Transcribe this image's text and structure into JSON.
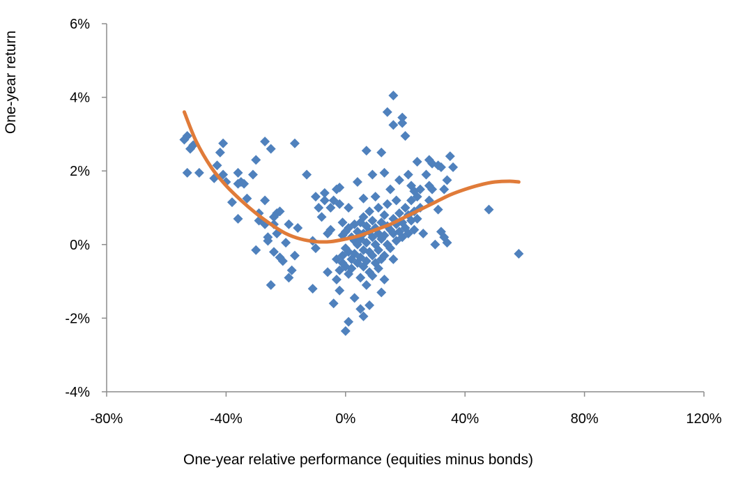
{
  "chart_data": {
    "type": "scatter",
    "title": "",
    "xlabel": "One-year relative performance (equities minus bonds)",
    "ylabel": "One-year return",
    "xlim": [
      -80,
      120
    ],
    "ylim": [
      -4,
      6
    ],
    "x_ticks": [
      -80,
      -40,
      0,
      40,
      80,
      120
    ],
    "x_tick_labels": [
      "-80%",
      "-40%",
      "0%",
      "40%",
      "80%",
      "120%"
    ],
    "y_ticks": [
      -4,
      -2,
      0,
      2,
      4,
      6
    ],
    "y_tick_labels": [
      "-4%",
      "-2%",
      "0%",
      "2%",
      "4%",
      "6%"
    ],
    "grid": false,
    "legend": "none",
    "series": [
      {
        "kind": "scatter",
        "marker": "diamond",
        "color": "#4F81BD",
        "points": [
          [
            -54,
            2.85
          ],
          [
            -53,
            2.95
          ],
          [
            -52,
            2.6
          ],
          [
            -51,
            2.7
          ],
          [
            -53,
            1.95
          ],
          [
            -49,
            1.95
          ],
          [
            -44,
            1.8
          ],
          [
            -43,
            2.15
          ],
          [
            -42,
            2.5
          ],
          [
            -41,
            2.75
          ],
          [
            -41,
            1.9
          ],
          [
            -40,
            1.7
          ],
          [
            -38,
            1.15
          ],
          [
            -36,
            1.95
          ],
          [
            -36,
            1.65
          ],
          [
            -35,
            1.7
          ],
          [
            -34,
            1.65
          ],
          [
            -36,
            0.7
          ],
          [
            -33,
            1.25
          ],
          [
            -31,
            1.9
          ],
          [
            -30,
            2.3
          ],
          [
            -29,
            0.85
          ],
          [
            -29,
            0.65
          ],
          [
            -27,
            2.8
          ],
          [
            -27,
            1.2
          ],
          [
            -27,
            0.55
          ],
          [
            -26,
            0.2
          ],
          [
            -26,
            0.1
          ],
          [
            -25,
            2.6
          ],
          [
            -25,
            -1.1
          ],
          [
            -24,
            0.75
          ],
          [
            -24,
            0.55
          ],
          [
            -23,
            0.85
          ],
          [
            -22,
            0.9
          ],
          [
            -23,
            0.3
          ],
          [
            -24,
            -0.2
          ],
          [
            -22,
            -0.35
          ],
          [
            -21,
            -0.45
          ],
          [
            -19,
            -0.9
          ],
          [
            -19,
            0.55
          ],
          [
            -18,
            -0.7
          ],
          [
            -17,
            -0.3
          ],
          [
            -17,
            2.75
          ],
          [
            -16,
            0.45
          ],
          [
            -20,
            0.05
          ],
          [
            -30,
            -0.15
          ],
          [
            -13,
            1.9
          ],
          [
            -11,
            0.1
          ],
          [
            -11,
            -1.2
          ],
          [
            -10,
            -0.1
          ],
          [
            -10,
            1.3
          ],
          [
            -9,
            1.0
          ],
          [
            -8,
            0.75
          ],
          [
            -7,
            1.4
          ],
          [
            -7,
            1.2
          ],
          [
            -6,
            -0.75
          ],
          [
            -6,
            0.3
          ],
          [
            -5,
            1.0
          ],
          [
            -5,
            0.4
          ],
          [
            -4,
            1.2
          ],
          [
            -4,
            -1.6
          ],
          [
            -3,
            1.5
          ],
          [
            -3,
            -0.4
          ],
          [
            -3,
            -0.95
          ],
          [
            -2,
            1.55
          ],
          [
            -2,
            1.1
          ],
          [
            -2,
            -0.7
          ],
          [
            -2,
            -1.25
          ],
          [
            -1,
            0.6
          ],
          [
            -1,
            0.25
          ],
          [
            -1,
            -0.3
          ],
          [
            -1,
            -0.5
          ],
          [
            0,
            -2.35
          ],
          [
            0,
            0.35
          ],
          [
            0,
            -0.1
          ],
          [
            0,
            -0.6
          ],
          [
            1,
            1.0
          ],
          [
            1,
            -2.1
          ],
          [
            1,
            0.45
          ],
          [
            1,
            -0.2
          ],
          [
            1,
            -0.8
          ],
          [
            2,
            0.2
          ],
          [
            2,
            -0.4
          ],
          [
            2,
            -0.65
          ],
          [
            3,
            0.55
          ],
          [
            3,
            0.1
          ],
          [
            3,
            -0.25
          ],
          [
            3,
            -1.45
          ],
          [
            4,
            0.35
          ],
          [
            4,
            0.0
          ],
          [
            4,
            -0.5
          ],
          [
            4,
            1.7
          ],
          [
            5,
            0.6
          ],
          [
            5,
            0.15
          ],
          [
            5,
            -0.35
          ],
          [
            5,
            -0.9
          ],
          [
            5,
            -1.75
          ],
          [
            6,
            0.75
          ],
          [
            6,
            0.3
          ],
          [
            6,
            -0.15
          ],
          [
            6,
            -0.6
          ],
          [
            6,
            -1.95
          ],
          [
            6,
            1.25
          ],
          [
            7,
            2.55
          ],
          [
            7,
            0.5
          ],
          [
            7,
            0.05
          ],
          [
            7,
            -0.45
          ],
          [
            7,
            -1.1
          ],
          [
            8,
            0.9
          ],
          [
            8,
            0.35
          ],
          [
            8,
            -0.2
          ],
          [
            8,
            -0.75
          ],
          [
            8,
            -1.65
          ],
          [
            9,
            1.9
          ],
          [
            9,
            0.65
          ],
          [
            9,
            0.2
          ],
          [
            9,
            -0.3
          ],
          [
            9,
            -0.85
          ],
          [
            10,
            1.3
          ],
          [
            10,
            0.45
          ],
          [
            10,
            0.0
          ],
          [
            10,
            -0.5
          ],
          [
            11,
            1.0
          ],
          [
            11,
            0.3
          ],
          [
            11,
            -0.15
          ],
          [
            11,
            -0.65
          ],
          [
            12,
            2.5
          ],
          [
            12,
            0.6
          ],
          [
            12,
            0.15
          ],
          [
            12,
            -0.4
          ],
          [
            12,
            -1.3
          ],
          [
            13,
            1.95
          ],
          [
            13,
            0.8
          ],
          [
            13,
            0.25
          ],
          [
            13,
            -0.3
          ],
          [
            13,
            -0.95
          ],
          [
            14,
            3.6
          ],
          [
            14,
            1.1
          ],
          [
            14,
            0.5
          ],
          [
            14,
            0.0
          ],
          [
            15,
            1.5
          ],
          [
            15,
            0.4
          ],
          [
            15,
            -0.1
          ],
          [
            16,
            4.05
          ],
          [
            16,
            3.25
          ],
          [
            16,
            0.7
          ],
          [
            16,
            0.3
          ],
          [
            16,
            -0.4
          ],
          [
            17,
            1.2
          ],
          [
            17,
            0.55
          ],
          [
            17,
            0.1
          ],
          [
            18,
            1.75
          ],
          [
            18,
            0.85
          ],
          [
            18,
            0.35
          ],
          [
            19,
            3.45
          ],
          [
            19,
            3.3
          ],
          [
            19,
            0.6
          ],
          [
            19,
            0.2
          ],
          [
            20,
            2.95
          ],
          [
            20,
            1.0
          ],
          [
            20,
            0.45
          ],
          [
            21,
            1.9
          ],
          [
            21,
            0.8
          ],
          [
            21,
            0.3
          ],
          [
            22,
            1.6
          ],
          [
            22,
            1.2
          ],
          [
            22,
            0.65
          ],
          [
            23,
            1.45
          ],
          [
            23,
            0.9
          ],
          [
            23,
            0.4
          ],
          [
            24,
            2.25
          ],
          [
            24,
            1.3
          ],
          [
            24,
            0.7
          ],
          [
            25,
            1.5
          ],
          [
            25,
            1.0
          ],
          [
            26,
            0.3
          ],
          [
            27,
            1.9
          ],
          [
            28,
            2.3
          ],
          [
            28,
            1.6
          ],
          [
            28,
            1.2
          ],
          [
            29,
            2.2
          ],
          [
            29,
            1.5
          ],
          [
            30,
            0.0
          ],
          [
            31,
            2.15
          ],
          [
            31,
            0.95
          ],
          [
            32,
            2.1
          ],
          [
            32,
            0.35
          ],
          [
            33,
            1.5
          ],
          [
            33,
            0.2
          ],
          [
            34,
            1.75
          ],
          [
            34,
            0.05
          ],
          [
            35,
            2.4
          ],
          [
            36,
            2.1
          ],
          [
            48,
            0.95
          ],
          [
            58,
            -0.25
          ]
        ]
      },
      {
        "kind": "trendline",
        "color": "#E07B39",
        "points": [
          [
            -54,
            3.6
          ],
          [
            -50,
            2.8
          ],
          [
            -45,
            2.1
          ],
          [
            -40,
            1.6
          ],
          [
            -35,
            1.2
          ],
          [
            -30,
            0.85
          ],
          [
            -25,
            0.55
          ],
          [
            -20,
            0.3
          ],
          [
            -15,
            0.15
          ],
          [
            -10,
            0.08
          ],
          [
            -5,
            0.08
          ],
          [
            0,
            0.15
          ],
          [
            5,
            0.25
          ],
          [
            10,
            0.4
          ],
          [
            15,
            0.55
          ],
          [
            20,
            0.75
          ],
          [
            25,
            0.95
          ],
          [
            30,
            1.15
          ],
          [
            35,
            1.35
          ],
          [
            40,
            1.5
          ],
          [
            45,
            1.62
          ],
          [
            50,
            1.7
          ],
          [
            55,
            1.72
          ],
          [
            58,
            1.7
          ]
        ]
      }
    ]
  }
}
